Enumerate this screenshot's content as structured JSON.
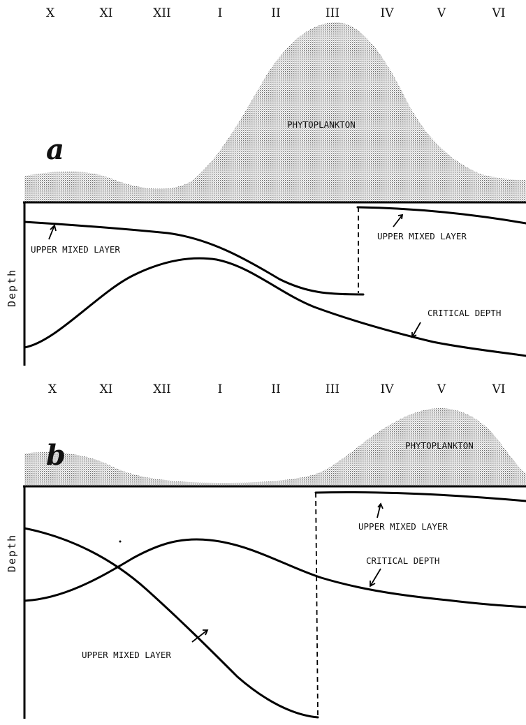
{
  "months": [
    "X",
    "XI",
    "XII",
    "I",
    "II",
    "III",
    "IV",
    "V",
    "VI"
  ],
  "panels": [
    {
      "letter": "a",
      "phytoplankton_label": "PHYTOPLANKTON",
      "upper_mixed_layer_label_1": "UPPER MIXED LAYER",
      "upper_mixed_layer_label_2": "UPPER MIXED LAYER",
      "critical_depth_label": "CRITICAL DEPTH",
      "y_axis_label": "Depth"
    },
    {
      "letter": "b",
      "phytoplankton_label": "PHYTOPLANKTON",
      "upper_mixed_layer_label_1": "UPPER MIXED LAYER",
      "upper_mixed_layer_label_2": "UPPER MIXED LAYER",
      "critical_depth_label": "CRITICAL DEPTH",
      "y_axis_label": "Depth"
    }
  ],
  "colors": {
    "ink": "#000000",
    "stipple": "#9a9a9a",
    "background": "#ffffff"
  }
}
